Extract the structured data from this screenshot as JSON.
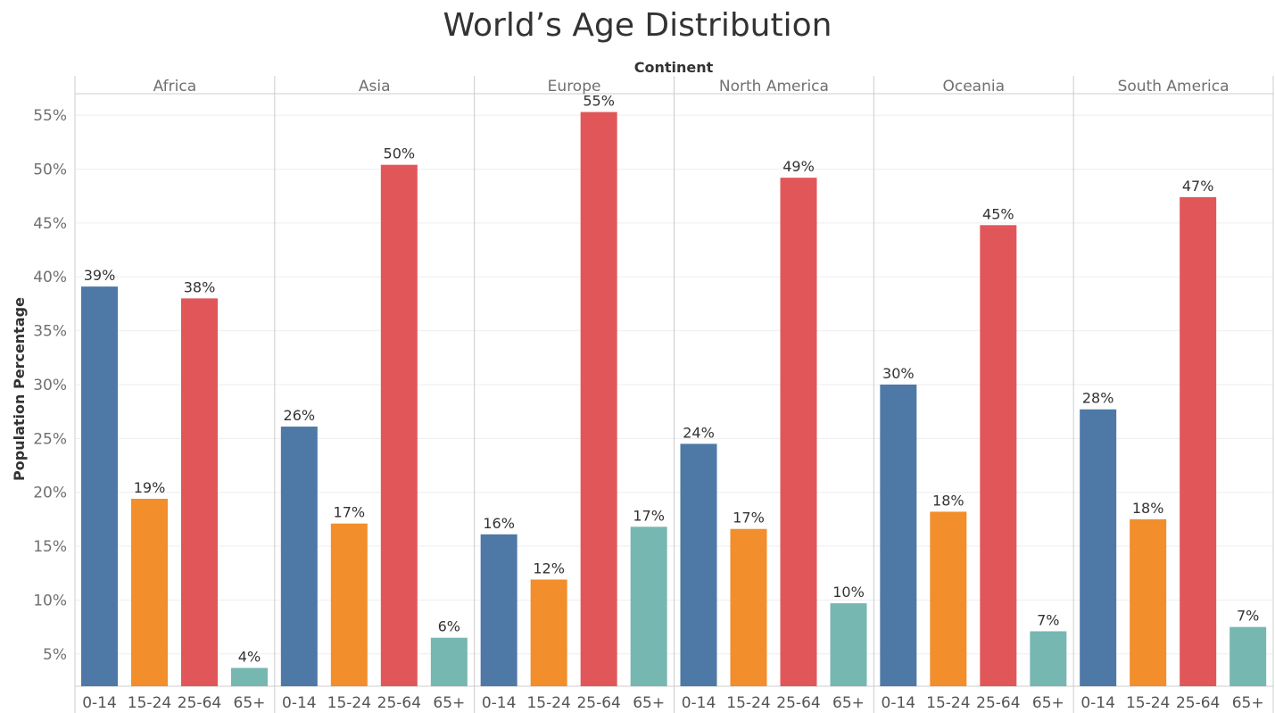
{
  "title": "World’s Age Distribution",
  "colors": {
    "0-14": "#4e79a7",
    "15-24": "#f28e2b",
    "25-64": "#e15759",
    "65+": "#76b7b2",
    "grid": "#eeeeee",
    "divider": "#cccccc"
  },
  "chart_data": {
    "type": "bar",
    "title": "World’s Age Distribution",
    "group_axis_label": "Continent",
    "ylabel": "Population Percentage",
    "ylim": [
      2,
      57
    ],
    "y_ticks": [
      5,
      10,
      15,
      20,
      25,
      30,
      35,
      40,
      45,
      50,
      55
    ],
    "y_tick_labels": [
      "5%",
      "10%",
      "15%",
      "20%",
      "25%",
      "30%",
      "35%",
      "40%",
      "45%",
      "50%",
      "55%"
    ],
    "categories": [
      "0-14",
      "15-24",
      "25-64",
      "65+"
    ],
    "grid": true,
    "groups": [
      {
        "name": "Africa",
        "values": [
          39.1,
          19.4,
          38.0,
          3.7
        ],
        "labels": [
          "39%",
          "19%",
          "38%",
          "4%"
        ]
      },
      {
        "name": "Asia",
        "values": [
          26.1,
          17.1,
          50.4,
          6.5
        ],
        "labels": [
          "26%",
          "17%",
          "50%",
          "6%"
        ]
      },
      {
        "name": "Europe",
        "values": [
          16.1,
          11.9,
          55.3,
          16.8
        ],
        "labels": [
          "16%",
          "12%",
          "55%",
          "17%"
        ]
      },
      {
        "name": "North America",
        "values": [
          24.5,
          16.6,
          49.2,
          9.7
        ],
        "labels": [
          "24%",
          "17%",
          "49%",
          "10%"
        ]
      },
      {
        "name": "Oceania",
        "values": [
          30.0,
          18.2,
          44.8,
          7.1
        ],
        "labels": [
          "30%",
          "18%",
          "45%",
          "7%"
        ]
      },
      {
        "name": "South America",
        "values": [
          27.7,
          17.5,
          47.4,
          7.5
        ],
        "labels": [
          "28%",
          "18%",
          "47%",
          "7%"
        ]
      }
    ]
  }
}
